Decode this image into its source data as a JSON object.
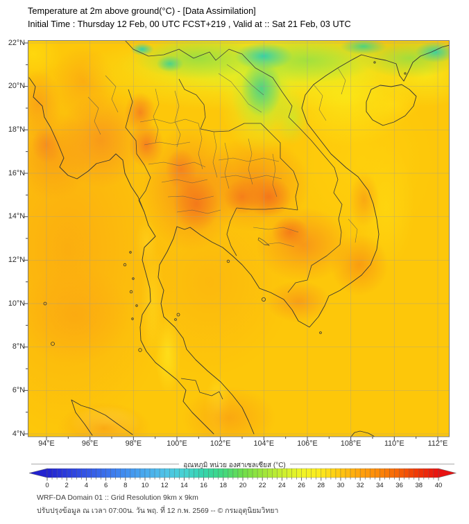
{
  "header": {
    "line1": "Temperature at 2m above ground(°C) - [Data Assimilation]",
    "line2": "Initial Time : Thursday 12 Feb, 00 UTC FCST+219 , Valid at :: Sat 21 Feb, 03 UTC"
  },
  "map": {
    "region": "Thailand / Indochina",
    "lat_ticks": [
      "22°N",
      "20°N",
      "18°N",
      "16°N",
      "14°N",
      "12°N",
      "10°N",
      "8°N",
      "6°N",
      "4°N"
    ],
    "lon_ticks": [
      "94°E",
      "96°E",
      "98°E",
      "100°E",
      "102°E",
      "104°E",
      "106°E",
      "108°E",
      "110°E",
      "112°E"
    ],
    "grid_color": "#9b9b9b",
    "coast_color": "#333333",
    "border_color": "#3a3a3a",
    "province_color": "#555555"
  },
  "colorbar": {
    "label": "อุณหภูมิ หน่วย องศาเซลเซียส (°C)",
    "min": 0,
    "max": 40,
    "tick_step": 2,
    "tick_labels": [
      "0",
      "2",
      "4",
      "6",
      "8",
      "10",
      "12",
      "14",
      "16",
      "18",
      "20",
      "22",
      "24",
      "26",
      "28",
      "30",
      "32",
      "34",
      "36",
      "38",
      "40"
    ],
    "stops": [
      {
        "v": 0,
        "c": "#2222cf"
      },
      {
        "v": 2,
        "c": "#2b3cdd"
      },
      {
        "v": 4,
        "c": "#3355e6"
      },
      {
        "v": 6,
        "c": "#3a70ec"
      },
      {
        "v": 8,
        "c": "#418ff0"
      },
      {
        "v": 10,
        "c": "#49aaef"
      },
      {
        "v": 12,
        "c": "#4fc2e8"
      },
      {
        "v": 14,
        "c": "#46d2d2"
      },
      {
        "v": 16,
        "c": "#35d4ab"
      },
      {
        "v": 18,
        "c": "#3fd87f"
      },
      {
        "v": 20,
        "c": "#6ede4b"
      },
      {
        "v": 22,
        "c": "#9ce63b"
      },
      {
        "v": 24,
        "c": "#c9ef2f"
      },
      {
        "v": 26,
        "c": "#f0f626"
      },
      {
        "v": 28,
        "c": "#fde91b"
      },
      {
        "v": 30,
        "c": "#ffc60f"
      },
      {
        "v": 32,
        "c": "#ffa20b"
      },
      {
        "v": 34,
        "c": "#fb8708"
      },
      {
        "v": 36,
        "c": "#f66106"
      },
      {
        "v": 38,
        "c": "#f03305"
      },
      {
        "v": 40,
        "c": "#e81212"
      }
    ]
  },
  "footer": {
    "line1": "WRF-DA Domain 01 :: Grid Resolution 9km x 9km",
    "line2": "ปรับปรุงข้อมูล ณ เวลา 07:00น. วัน พฤ. ที่ 12 ก.พ. 2569 -- © กรมอุตุนิยมวิทยา"
  }
}
